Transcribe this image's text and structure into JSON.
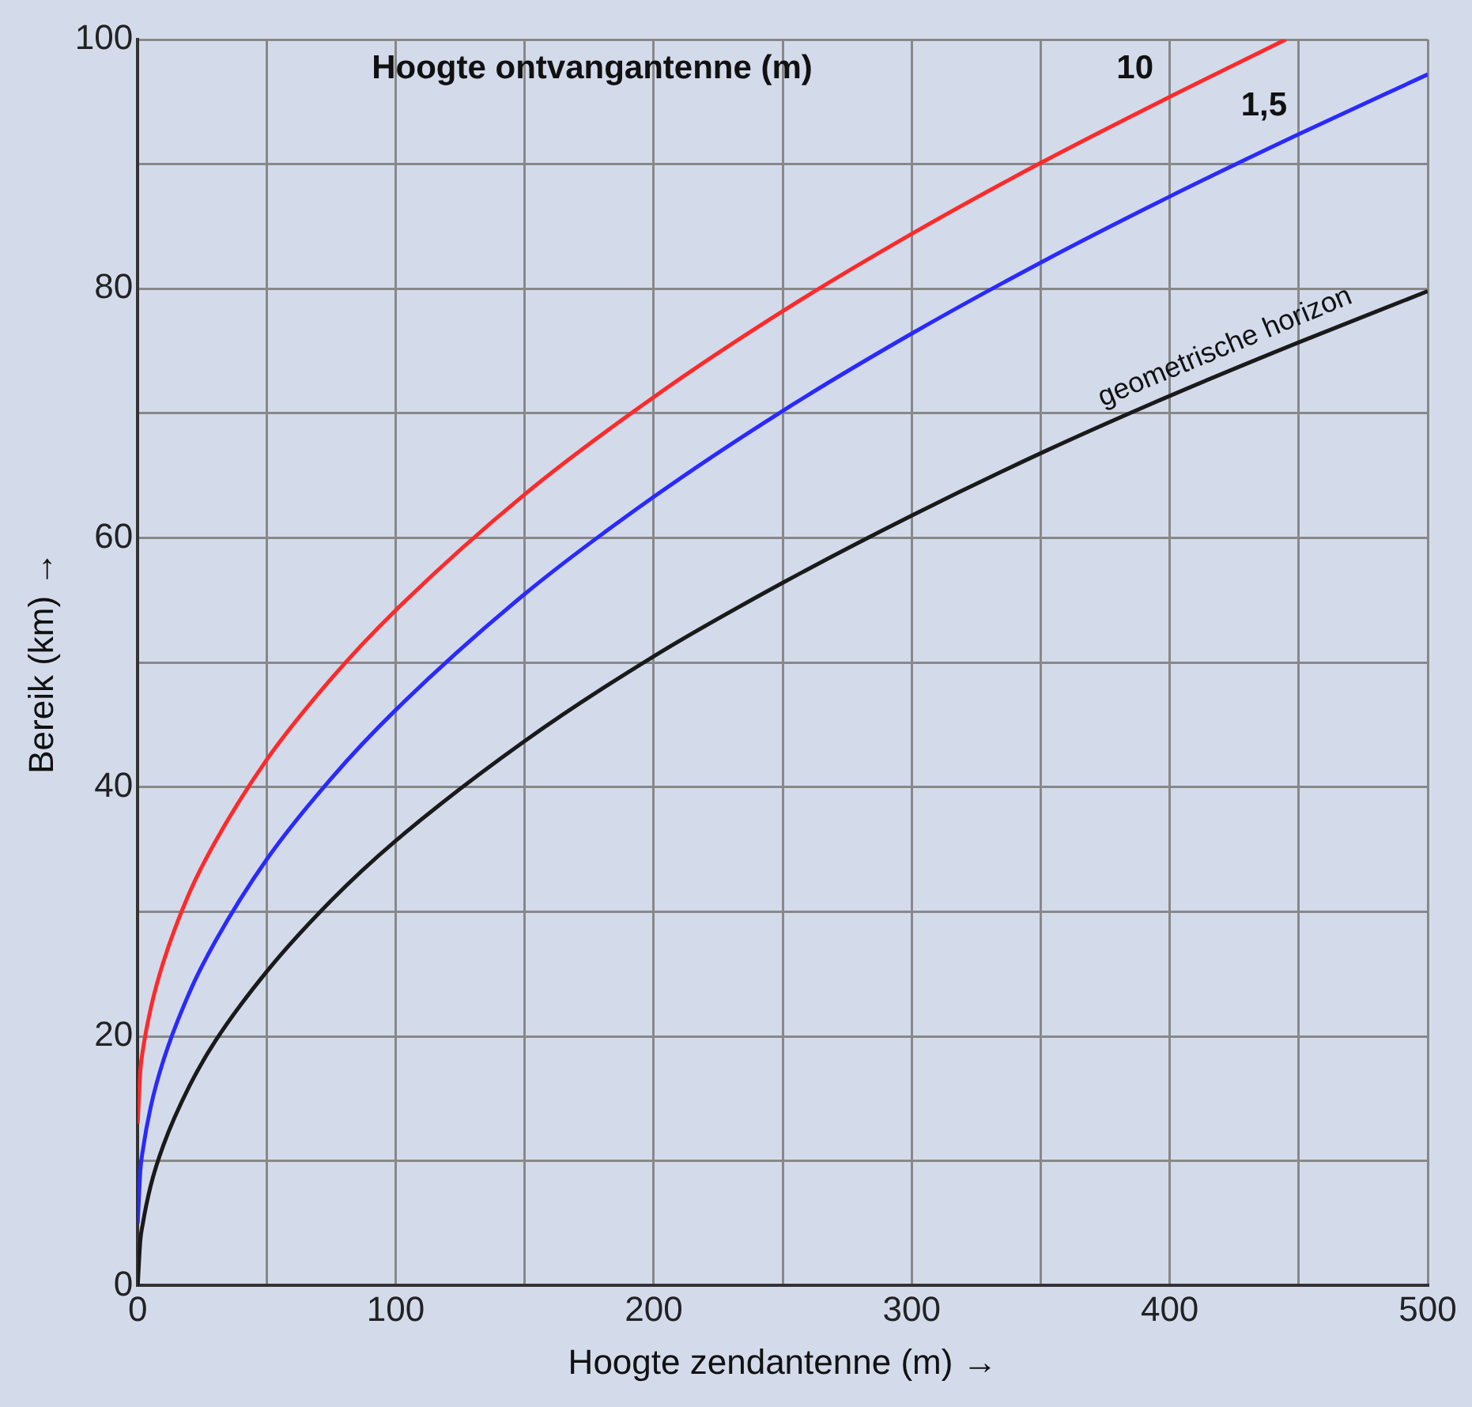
{
  "chart_data": {
    "type": "line",
    "xlabel": "Hoogte zendantenne (m) →",
    "ylabel": "Bereik (km) →",
    "legend_title": "Hoogte ontvangantenne (m)",
    "x": [
      0,
      1,
      2,
      5,
      10,
      20,
      30,
      50,
      75,
      100,
      150,
      200,
      250,
      300,
      350,
      400,
      450,
      500
    ],
    "series": [
      {
        "name": "10",
        "color": "#ff2a2a",
        "x": [
          0,
          1,
          2,
          5,
          10,
          20,
          30,
          50,
          75,
          100,
          150,
          200,
          250,
          300,
          350,
          400,
          445
        ],
        "values": [
          13.0,
          17.2,
          18.9,
          22.2,
          26.0,
          31.5,
          35.6,
          42.2,
          48.7,
          54.2,
          63.5,
          71.3,
          78.2,
          84.4,
          90.1,
          95.4,
          100
        ]
      },
      {
        "name": "1,5",
        "color": "#2a2aff",
        "values": [
          5.0,
          9.2,
          10.9,
          14.3,
          18.1,
          23.5,
          27.6,
          34.2,
          40.7,
          46.2,
          55.5,
          63.3,
          70.2,
          76.4,
          82.1,
          87.4,
          92.4,
          97.2
        ]
      },
      {
        "name": "geometrische horizon",
        "color": "#1a1a1a",
        "values": [
          0,
          3.6,
          5.0,
          8.0,
          11.3,
          16.0,
          19.6,
          25.2,
          30.9,
          35.7,
          43.7,
          50.5,
          56.4,
          61.8,
          66.8,
          71.4,
          75.7,
          79.8
        ]
      }
    ],
    "xlim": [
      0,
      500
    ],
    "xticks": [
      0,
      {
        "value": 50,
        "label": null
      },
      100,
      {
        "value": 150,
        "label": null
      },
      200,
      {
        "value": 250,
        "label": null
      },
      300,
      {
        "value": 350,
        "label": null
      },
      400,
      {
        "value": 450,
        "label": null
      },
      500
    ],
    "ylim": [
      0,
      100
    ],
    "yticks": [
      0,
      {
        "value": 10,
        "label": null
      },
      20,
      {
        "value": 30,
        "label": null
      },
      40,
      {
        "value": 50,
        "label": null
      },
      60,
      {
        "value": 70,
        "label": null
      },
      80,
      {
        "value": 90,
        "label": null
      },
      100
    ],
    "grid": true,
    "legend": false,
    "marker": "none",
    "line_style": "solid"
  }
}
